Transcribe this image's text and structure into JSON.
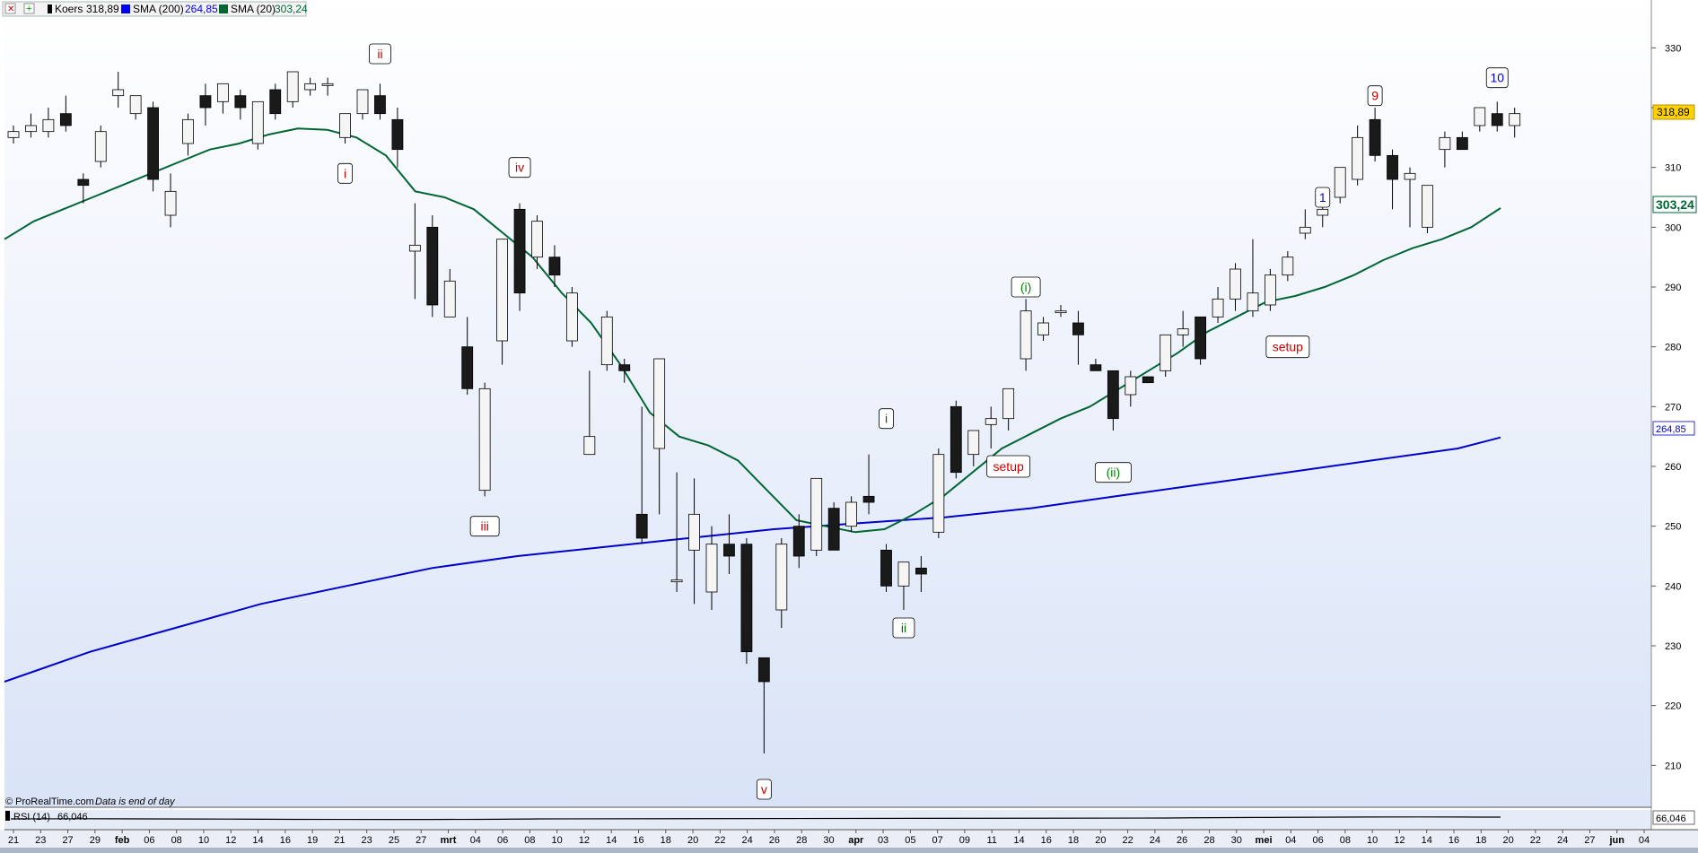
{
  "header": {
    "close_icon": "close-icon",
    "add_icon": "plus-icon",
    "legend": [
      {
        "name": "Koers",
        "value": "318,89",
        "color": "#000000"
      },
      {
        "name": "SMA (200)",
        "value": "264,85",
        "color": "#0000ff"
      },
      {
        "name": "SMA (20)",
        "value": "303,24",
        "color": "#006633"
      }
    ]
  },
  "footer": {
    "source": "© ProRealTime.com",
    "note": "Data is end of day"
  },
  "rsi": {
    "label": "RSI (14)",
    "value": "66,046",
    "axis_label": "66,046"
  },
  "colors": {
    "plot_top": "#ffffff",
    "plot_bottom": "#dde6f8",
    "bull_fill": "#f5f5f5",
    "bear_fill": "#1a1a1a",
    "sma200": "#0000cc",
    "sma20": "#006633",
    "tag_red": "#cc0000",
    "tag_green": "#008800",
    "tag_blue": "#0000cc"
  },
  "chart_data": {
    "type": "candlestick",
    "ylim": [
      203,
      338
    ],
    "yticks": [
      210,
      220,
      230,
      240,
      250,
      260,
      270,
      280,
      290,
      300,
      310,
      320,
      330
    ],
    "price_labels": {
      "last": "318,89",
      "sma20": "303,24",
      "sma200": "264,85"
    },
    "x_ticks": [
      "21",
      "23",
      "27",
      "29",
      "feb",
      "06",
      "08",
      "10",
      "12",
      "14",
      "16",
      "19",
      "21",
      "23",
      "25",
      "27",
      "mrt",
      "04",
      "06",
      "08",
      "10",
      "12",
      "14",
      "16",
      "18",
      "20",
      "22",
      "24",
      "26",
      "28",
      "30",
      "apr",
      "03",
      "05",
      "07",
      "09",
      "11",
      "14",
      "16",
      "18",
      "20",
      "22",
      "24",
      "26",
      "28",
      "30",
      "mei",
      "04",
      "06",
      "08",
      "10",
      "12",
      "14",
      "16",
      "18",
      "20",
      "22",
      "24",
      "27",
      "jun",
      "04"
    ],
    "candles": [
      {
        "o": 315,
        "h": 317,
        "l": 314,
        "c": 316
      },
      {
        "o": 316,
        "h": 319,
        "l": 315,
        "c": 317
      },
      {
        "o": 316,
        "h": 320,
        "l": 315,
        "c": 318
      },
      {
        "o": 319,
        "h": 322,
        "l": 316,
        "c": 317
      },
      {
        "o": 308,
        "h": 309,
        "l": 304,
        "c": 307
      },
      {
        "o": 311,
        "h": 317,
        "l": 310,
        "c": 316
      },
      {
        "o": 322,
        "h": 326,
        "l": 320,
        "c": 323
      },
      {
        "o": 319,
        "h": 322,
        "l": 318,
        "c": 322
      },
      {
        "o": 320,
        "h": 321,
        "l": 306,
        "c": 308
      },
      {
        "o": 302,
        "h": 309,
        "l": 300,
        "c": 306
      },
      {
        "o": 314,
        "h": 319,
        "l": 312,
        "c": 318
      },
      {
        "o": 322,
        "h": 324,
        "l": 317,
        "c": 320
      },
      {
        "o": 321,
        "h": 324,
        "l": 319,
        "c": 324
      },
      {
        "o": 322,
        "h": 323,
        "l": 318,
        "c": 320
      },
      {
        "o": 314,
        "h": 321,
        "l": 313,
        "c": 321
      },
      {
        "o": 323,
        "h": 324,
        "l": 318,
        "c": 319
      },
      {
        "o": 321,
        "h": 326,
        "l": 320,
        "c": 326
      },
      {
        "o": 323,
        "h": 325,
        "l": 322,
        "c": 324
      },
      {
        "o": 324,
        "h": 325,
        "l": 322,
        "c": 324
      },
      {
        "o": 315,
        "h": 319,
        "l": 314,
        "c": 319
      },
      {
        "o": 319,
        "h": 323,
        "l": 318,
        "c": 323
      },
      {
        "o": 322,
        "h": 324,
        "l": 318,
        "c": 319
      },
      {
        "o": 318,
        "h": 320,
        "l": 310,
        "c": 313
      },
      {
        "o": 296,
        "h": 304,
        "l": 288,
        "c": 297
      },
      {
        "o": 300,
        "h": 302,
        "l": 285,
        "c": 287
      },
      {
        "o": 285,
        "h": 293,
        "l": 285,
        "c": 291
      },
      {
        "o": 280,
        "h": 285,
        "l": 272,
        "c": 273
      },
      {
        "o": 256,
        "h": 274,
        "l": 255,
        "c": 273
      },
      {
        "o": 281,
        "h": 298,
        "l": 277,
        "c": 298
      },
      {
        "o": 303,
        "h": 304,
        "l": 286,
        "c": 289
      },
      {
        "o": 295,
        "h": 302,
        "l": 293,
        "c": 301
      },
      {
        "o": 295,
        "h": 297,
        "l": 290,
        "c": 292
      },
      {
        "o": 281,
        "h": 290,
        "l": 280,
        "c": 289
      },
      {
        "o": 262,
        "h": 276,
        "l": 262,
        "c": 265
      },
      {
        "o": 277,
        "h": 286,
        "l": 276,
        "c": 285
      },
      {
        "o": 277,
        "h": 278,
        "l": 274,
        "c": 276
      },
      {
        "o": 252,
        "h": 270,
        "l": 247,
        "c": 248
      },
      {
        "o": 263,
        "h": 278,
        "l": 252,
        "c": 278
      },
      {
        "o": 241,
        "h": 259,
        "l": 239,
        "c": 241
      },
      {
        "o": 246,
        "h": 258,
        "l": 237,
        "c": 252
      },
      {
        "o": 239,
        "h": 250,
        "l": 236,
        "c": 247
      },
      {
        "o": 247,
        "h": 252,
        "l": 242,
        "c": 245
      },
      {
        "o": 247,
        "h": 248,
        "l": 227,
        "c": 229
      },
      {
        "o": 228,
        "h": 228,
        "l": 212,
        "c": 224
      },
      {
        "o": 236,
        "h": 248,
        "l": 233,
        "c": 247
      },
      {
        "o": 250,
        "h": 252,
        "l": 243,
        "c": 245
      },
      {
        "o": 246,
        "h": 258,
        "l": 245,
        "c": 258
      },
      {
        "o": 253,
        "h": 254,
        "l": 247,
        "c": 246
      },
      {
        "o": 250,
        "h": 255,
        "l": 249,
        "c": 254
      },
      {
        "o": 255,
        "h": 262,
        "l": 252,
        "c": 254
      },
      {
        "o": 246,
        "h": 247,
        "l": 239,
        "c": 240
      },
      {
        "o": 240,
        "h": 244,
        "l": 236,
        "c": 244
      },
      {
        "o": 243,
        "h": 245,
        "l": 239,
        "c": 242
      },
      {
        "o": 249,
        "h": 263,
        "l": 248,
        "c": 262
      },
      {
        "o": 270,
        "h": 271,
        "l": 258,
        "c": 259
      },
      {
        "o": 262,
        "h": 265,
        "l": 260,
        "c": 266
      },
      {
        "o": 267,
        "h": 270,
        "l": 263,
        "c": 268
      },
      {
        "o": 268,
        "h": 273,
        "l": 266,
        "c": 273
      },
      {
        "o": 278,
        "h": 288,
        "l": 276,
        "c": 286
      },
      {
        "o": 282,
        "h": 285,
        "l": 281,
        "c": 284
      },
      {
        "o": 286,
        "h": 287,
        "l": 285,
        "c": 286
      },
      {
        "o": 284,
        "h": 286,
        "l": 277,
        "c": 282
      },
      {
        "o": 277,
        "h": 278,
        "l": 276,
        "c": 276
      },
      {
        "o": 276,
        "h": 276,
        "l": 266,
        "c": 268
      },
      {
        "o": 272,
        "h": 276,
        "l": 270,
        "c": 275
      },
      {
        "o": 275,
        "h": 275,
        "l": 274,
        "c": 274
      },
      {
        "o": 276,
        "h": 282,
        "l": 275,
        "c": 282
      },
      {
        "o": 282,
        "h": 286,
        "l": 280,
        "c": 283
      },
      {
        "o": 285,
        "h": 285,
        "l": 277,
        "c": 278
      },
      {
        "o": 285,
        "h": 290,
        "l": 284,
        "c": 288
      },
      {
        "o": 288,
        "h": 294,
        "l": 286,
        "c": 293
      },
      {
        "o": 286,
        "h": 298,
        "l": 285,
        "c": 289
      },
      {
        "o": 287,
        "h": 293,
        "l": 286,
        "c": 292
      },
      {
        "o": 292,
        "h": 296,
        "l": 291,
        "c": 295
      },
      {
        "o": 299,
        "h": 303,
        "l": 298,
        "c": 300
      },
      {
        "o": 302,
        "h": 304,
        "l": 300,
        "c": 303
      },
      {
        "o": 305,
        "h": 310,
        "l": 304,
        "c": 310
      },
      {
        "o": 308,
        "h": 317,
        "l": 307,
        "c": 315
      },
      {
        "o": 318,
        "h": 320,
        "l": 311,
        "c": 312
      },
      {
        "o": 312,
        "h": 313,
        "l": 303,
        "c": 308
      },
      {
        "o": 308,
        "h": 310,
        "l": 300,
        "c": 309
      },
      {
        "o": 300,
        "h": 307,
        "l": 299,
        "c": 307
      },
      {
        "o": 313,
        "h": 316,
        "l": 310,
        "c": 315
      },
      {
        "o": 315,
        "h": 316,
        "l": 313,
        "c": 313
      },
      {
        "o": 317,
        "h": 320,
        "l": 316,
        "c": 320
      },
      {
        "o": 319,
        "h": 321,
        "l": 316,
        "c": 317
      },
      {
        "o": 317,
        "h": 320,
        "l": 315,
        "c": 319
      }
    ],
    "sma20": [
      [
        0,
        298
      ],
      [
        2,
        301
      ],
      [
        4,
        303
      ],
      [
        6,
        305
      ],
      [
        8,
        307
      ],
      [
        10,
        309
      ],
      [
        12,
        311
      ],
      [
        14,
        313
      ],
      [
        16,
        314
      ],
      [
        18,
        315.5
      ],
      [
        20,
        316.5
      ],
      [
        22,
        316.3
      ],
      [
        24,
        315
      ],
      [
        26,
        312
      ],
      [
        28,
        306
      ],
      [
        30,
        305
      ],
      [
        32,
        303
      ],
      [
        34,
        299
      ],
      [
        36,
        295
      ],
      [
        38,
        289
      ],
      [
        40,
        284
      ],
      [
        42,
        277
      ],
      [
        44,
        269
      ],
      [
        46,
        265
      ],
      [
        48,
        263.5
      ],
      [
        50,
        261
      ],
      [
        52,
        256
      ],
      [
        54,
        251
      ],
      [
        56,
        250
      ],
      [
        58,
        249
      ],
      [
        60,
        249.5
      ],
      [
        62,
        252
      ],
      [
        64,
        255
      ],
      [
        66,
        259
      ],
      [
        68,
        263
      ],
      [
        70,
        265.5
      ],
      [
        72,
        268
      ],
      [
        74,
        270
      ],
      [
        76,
        273
      ],
      [
        78,
        276
      ],
      [
        80,
        279
      ],
      [
        82,
        282.5
      ],
      [
        84,
        285
      ],
      [
        86,
        287.5
      ],
      [
        88,
        288.5
      ],
      [
        90,
        290
      ],
      [
        92,
        292
      ],
      [
        94,
        294.5
      ],
      [
        96,
        296.5
      ],
      [
        98,
        298
      ],
      [
        100,
        300
      ],
      [
        102,
        303.2
      ]
    ],
    "sma200": [
      [
        0,
        224
      ],
      [
        10,
        229
      ],
      [
        20,
        233
      ],
      [
        30,
        237
      ],
      [
        40,
        240
      ],
      [
        50,
        243
      ],
      [
        60,
        245
      ],
      [
        70,
        246.5
      ],
      [
        80,
        248
      ],
      [
        90,
        249.5
      ],
      [
        100,
        250.5
      ],
      [
        110,
        251.5
      ],
      [
        120,
        253
      ],
      [
        130,
        255
      ],
      [
        140,
        257
      ],
      [
        150,
        259
      ],
      [
        160,
        261
      ],
      [
        170,
        263
      ],
      [
        175,
        264.85
      ]
    ],
    "annotations": [
      {
        "text": "ii",
        "idx": 21,
        "price": 329,
        "color": "#cc0000"
      },
      {
        "text": "i",
        "idx": 19,
        "price": 309,
        "color": "#cc0000"
      },
      {
        "text": "iv",
        "idx": 29,
        "price": 310,
        "color": "#cc0000"
      },
      {
        "text": "iii",
        "idx": 27,
        "price": 250,
        "color": "#cc0000"
      },
      {
        "text": "v",
        "idx": 43,
        "price": 206,
        "color": "#cc0000"
      },
      {
        "text": "i",
        "idx": 50,
        "price": 268,
        "color": "#006600"
      },
      {
        "text": "ii",
        "idx": 51,
        "price": 233,
        "color": "#006600"
      },
      {
        "text": "setup",
        "idx": 57,
        "price": 260,
        "color": "#cc0000"
      },
      {
        "text": "(i)",
        "idx": 58,
        "price": 290,
        "color": "#008800"
      },
      {
        "text": "(ii)",
        "idx": 63,
        "price": 259,
        "color": "#008800"
      },
      {
        "text": "setup",
        "idx": 73,
        "price": 280,
        "color": "#cc0000"
      },
      {
        "text": "1",
        "idx": 75,
        "price": 305,
        "color": "#0000cc"
      },
      {
        "text": "9",
        "idx": 78,
        "price": 322,
        "color": "#cc0000"
      },
      {
        "text": "10",
        "idx": 85,
        "price": 325,
        "color": "#0000cc"
      }
    ]
  }
}
